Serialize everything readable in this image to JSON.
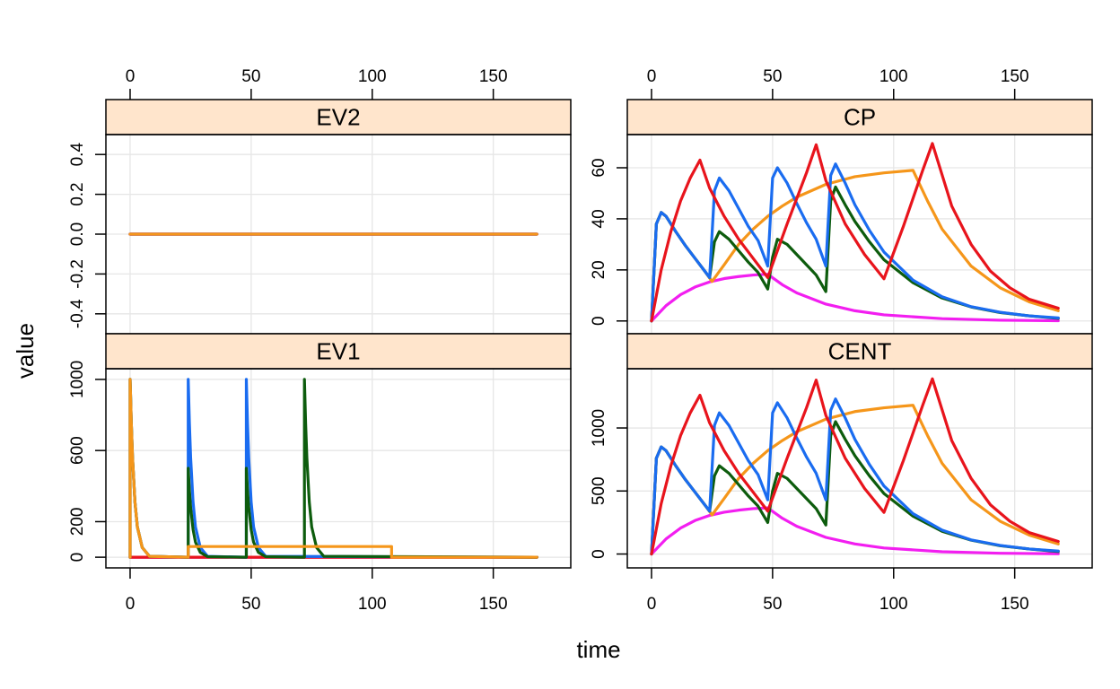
{
  "chart_data": {
    "type": "line",
    "layout": "lattice-2x2",
    "xlabel": "time",
    "ylabel": "value",
    "xlim": [
      -10,
      182
    ],
    "xticks": [
      0,
      50,
      100,
      150
    ],
    "series_colors": [
      "#1A6CF0",
      "#E8141C",
      "#0D5C0D",
      "#F5961A",
      "#F21EF0"
    ],
    "panels": [
      {
        "id": "EV2",
        "title": "EV2",
        "ylim": [
          -0.5,
          0.5
        ],
        "yticks": [
          -0.4,
          -0.2,
          0.0,
          0.2,
          0.4
        ],
        "ytick_labels": [
          "-0.4",
          "-0.2",
          "0.0",
          "0.2",
          "0.4"
        ],
        "x_axis_side": "top",
        "y_axis_side": "left",
        "series": [
          {
            "color": "#E8141C",
            "x": [
              0,
              168
            ],
            "y": [
              0,
              0
            ]
          },
          {
            "color": "#0D5C0D",
            "x": [
              0,
              168
            ],
            "y": [
              0,
              0
            ]
          },
          {
            "color": "#1A6CF0",
            "x": [
              0,
              168
            ],
            "y": [
              0,
              0
            ]
          },
          {
            "color": "#F21EF0",
            "x": [
              0,
              168
            ],
            "y": [
              0,
              0
            ]
          },
          {
            "color": "#F5961A",
            "x": [
              0,
              168
            ],
            "y": [
              0,
              0
            ]
          }
        ]
      },
      {
        "id": "CP",
        "title": "CP",
        "ylim": [
          -5,
          73
        ],
        "yticks": [
          0,
          20,
          40,
          60
        ],
        "ytick_labels": [
          "0",
          "20",
          "40",
          "60"
        ],
        "x_axis_side": "top",
        "y_axis_side": "left",
        "series": [
          {
            "color": "#F21EF0",
            "x": [
              0,
              6,
              12,
              18,
              24,
              30,
              36,
              42,
              48,
              54,
              60,
              72,
              84,
              96,
              120,
              144,
              168
            ],
            "y": [
              0,
              6,
              10.3,
              13.3,
              15.3,
              16.6,
              17.4,
              18,
              18.3,
              14.2,
              11,
              6.6,
              4,
              2.4,
              0.9,
              0.3,
              0.1
            ]
          },
          {
            "color": "#F5961A",
            "x": [
              0,
              2,
              4,
              6,
              10,
              14,
              18,
              22,
              25,
              30,
              36,
              42,
              48,
              54,
              60,
              72,
              84,
              96,
              108,
              114,
              120,
              132,
              144,
              156,
              168
            ],
            "y": [
              0,
              38,
              42.5,
              41,
              35,
              29.5,
              24.5,
              19.5,
              15.5,
              22,
              30,
              36,
              41,
              45,
              48.5,
              53.5,
              56.5,
              58,
              59,
              47,
              36,
              21.5,
              13,
              7.5,
              4
            ]
          },
          {
            "color": "#0D5C0D",
            "x": [
              0,
              2,
              4,
              6,
              10,
              14,
              18,
              22,
              24,
              26,
              28,
              32,
              36,
              40,
              44,
              48,
              50,
              52,
              56,
              60,
              64,
              68,
              72,
              74,
              76,
              80,
              84,
              90,
              96,
              108,
              120,
              132,
              144,
              156,
              168
            ],
            "y": [
              0,
              38,
              42.5,
              41,
              35,
              29.5,
              24.5,
              19.5,
              17,
              31,
              35,
              32,
              27.5,
              23,
              19,
              12.5,
              25,
              32,
              30,
              26,
              22,
              18,
              11.5,
              47,
              52.5,
              45.5,
              39,
              31,
              24,
              15,
              9,
              5.5,
              3.3,
              2,
              1
            ]
          },
          {
            "color": "#1A6CF0",
            "x": [
              0,
              2,
              4,
              6,
              10,
              14,
              18,
              22,
              24,
              26,
              28,
              32,
              36,
              40,
              44,
              48,
              50,
              52,
              56,
              60,
              64,
              68,
              72,
              74,
              76,
              80,
              84,
              90,
              96,
              108,
              120,
              132,
              144,
              156,
              168
            ],
            "y": [
              0,
              38,
              42.5,
              41,
              35,
              29.5,
              24.5,
              19.5,
              17,
              51,
              56,
              51,
              44,
              37,
              31.5,
              21.5,
              56,
              60,
              54,
              46,
              38.5,
              32,
              21.5,
              57,
              61.5,
              54,
              45.5,
              35.5,
              27,
              16,
              9.5,
              5.6,
              3.4,
              2,
              1.2
            ]
          },
          {
            "color": "#E8141C",
            "x": [
              0,
              4,
              8,
              12,
              16,
              20,
              24,
              30,
              36,
              42,
              48,
              56,
              64,
              68,
              72,
              80,
              88,
              96,
              104,
              112,
              116,
              124,
              132,
              140,
              148,
              156,
              168
            ],
            "y": [
              0,
              20,
              35,
              47,
              56,
              63,
              52,
              41,
              32,
              24.5,
              17,
              38,
              58,
              69,
              55,
              38,
              26,
              16.5,
              37,
              59,
              69.5,
              45,
              30,
              19.5,
              13,
              8.5,
              5
            ]
          }
        ]
      },
      {
        "id": "EV1",
        "title": "EV1",
        "ylim": [
          -60,
          1060
        ],
        "yticks": [
          0,
          200,
          600,
          1000
        ],
        "ytick_labels": [
          "0",
          "200",
          "600",
          "1000"
        ],
        "x_axis_side": "bottom",
        "y_axis_side": "left",
        "series": [
          {
            "color": "#F21EF0",
            "x": [
              0,
              168
            ],
            "y": [
              0,
              0
            ]
          },
          {
            "color": "#E8141C",
            "x": [
              0,
              168
            ],
            "y": [
              0,
              0
            ]
          },
          {
            "color": "#1A6CF0",
            "x": [
              0,
              0,
              0.5,
              1,
              2,
              3,
              5,
              8,
              24,
              24,
              24.5,
              25,
              26,
              27,
              29,
              32,
              48,
              48,
              48.5,
              49,
              50,
              51,
              53,
              56,
              168
            ],
            "y": [
              0,
              1000,
              750,
              560,
              310,
              170,
              55,
              5,
              0,
              1000,
              750,
              560,
              310,
              170,
              55,
              5,
              0,
              1000,
              750,
              560,
              310,
              170,
              55,
              5,
              0
            ]
          },
          {
            "color": "#0D5C0D",
            "x": [
              0,
              0,
              0.5,
              1,
              2,
              3,
              5,
              8,
              24,
              24,
              24.5,
              25,
              26,
              27,
              29,
              32,
              48,
              48,
              48.5,
              49,
              50,
              51,
              53,
              56,
              72,
              72,
              72.5,
              73,
              74,
              75,
              77,
              80,
              168
            ],
            "y": [
              0,
              1000,
              750,
              560,
              310,
              170,
              55,
              5,
              0,
              500,
              375,
              280,
              155,
              85,
              27,
              3,
              0,
              500,
              375,
              280,
              155,
              85,
              27,
              3,
              0,
              1000,
              750,
              560,
              310,
              170,
              55,
              5,
              0
            ]
          },
          {
            "color": "#F5961A",
            "x": [
              0,
              0,
              0.5,
              1,
              2,
              3,
              5,
              8,
              24,
              24,
              108,
              108,
              168
            ],
            "y": [
              0,
              1000,
              750,
              560,
              310,
              170,
              55,
              5,
              0,
              60,
              60,
              0,
              0
            ]
          }
        ]
      },
      {
        "id": "CENT",
        "title": "CENT",
        "ylim": [
          -110,
          1470
        ],
        "yticks": [
          0,
          500,
          1000
        ],
        "ytick_labels": [
          "0",
          "500",
          "1000"
        ],
        "x_axis_side": "bottom",
        "y_axis_side": "left",
        "series": [
          {
            "color": "#F21EF0",
            "x": [
              0,
              6,
              12,
              18,
              24,
              30,
              36,
              42,
              48,
              54,
              60,
              72,
              84,
              96,
              120,
              144,
              168
            ],
            "y": [
              0,
              120,
              206,
              266,
              306,
              332,
              348,
              360,
              366,
              284,
              220,
              132,
              80,
              48,
              18,
              6,
              2
            ]
          },
          {
            "color": "#F5961A",
            "x": [
              0,
              2,
              4,
              6,
              10,
              14,
              18,
              22,
              25,
              30,
              36,
              42,
              48,
              54,
              60,
              72,
              84,
              96,
              108,
              114,
              120,
              132,
              144,
              156,
              168
            ],
            "y": [
              0,
              760,
              850,
              820,
              700,
              590,
              490,
              390,
              310,
              440,
              600,
              720,
              820,
              900,
              970,
              1070,
              1130,
              1160,
              1180,
              940,
              720,
              430,
              260,
              150,
              80
            ]
          },
          {
            "color": "#0D5C0D",
            "x": [
              0,
              2,
              4,
              6,
              10,
              14,
              18,
              22,
              24,
              26,
              28,
              32,
              36,
              40,
              44,
              48,
              50,
              52,
              56,
              60,
              64,
              68,
              72,
              74,
              76,
              80,
              84,
              90,
              96,
              108,
              120,
              132,
              144,
              156,
              168
            ],
            "y": [
              0,
              760,
              850,
              820,
              700,
              590,
              490,
              390,
              340,
              620,
              700,
              640,
              550,
              460,
              380,
              250,
              500,
              640,
              600,
              520,
              440,
              360,
              230,
              940,
              1050,
              910,
              780,
              620,
              480,
              300,
              180,
              110,
              66,
              40,
              20
            ]
          },
          {
            "color": "#1A6CF0",
            "x": [
              0,
              2,
              4,
              6,
              10,
              14,
              18,
              22,
              24,
              26,
              28,
              32,
              36,
              40,
              44,
              48,
              50,
              52,
              56,
              60,
              64,
              68,
              72,
              74,
              76,
              80,
              84,
              90,
              96,
              108,
              120,
              132,
              144,
              156,
              168
            ],
            "y": [
              0,
              760,
              850,
              820,
              700,
              590,
              490,
              390,
              340,
              1020,
              1120,
              1020,
              880,
              740,
              630,
              430,
              1120,
              1200,
              1080,
              920,
              770,
              640,
              430,
              1140,
              1230,
              1080,
              910,
              710,
              540,
              320,
              190,
              112,
              68,
              40,
              24
            ]
          },
          {
            "color": "#E8141C",
            "x": [
              0,
              4,
              8,
              12,
              16,
              20,
              24,
              30,
              36,
              42,
              48,
              56,
              64,
              68,
              72,
              80,
              88,
              96,
              104,
              112,
              116,
              124,
              132,
              140,
              148,
              156,
              168
            ],
            "y": [
              0,
              400,
              700,
              940,
              1120,
              1260,
              1040,
              820,
              640,
              490,
              340,
              760,
              1160,
              1380,
              1100,
              760,
              520,
              330,
              740,
              1180,
              1390,
              900,
              600,
              390,
              260,
              170,
              100
            ]
          }
        ]
      }
    ]
  }
}
